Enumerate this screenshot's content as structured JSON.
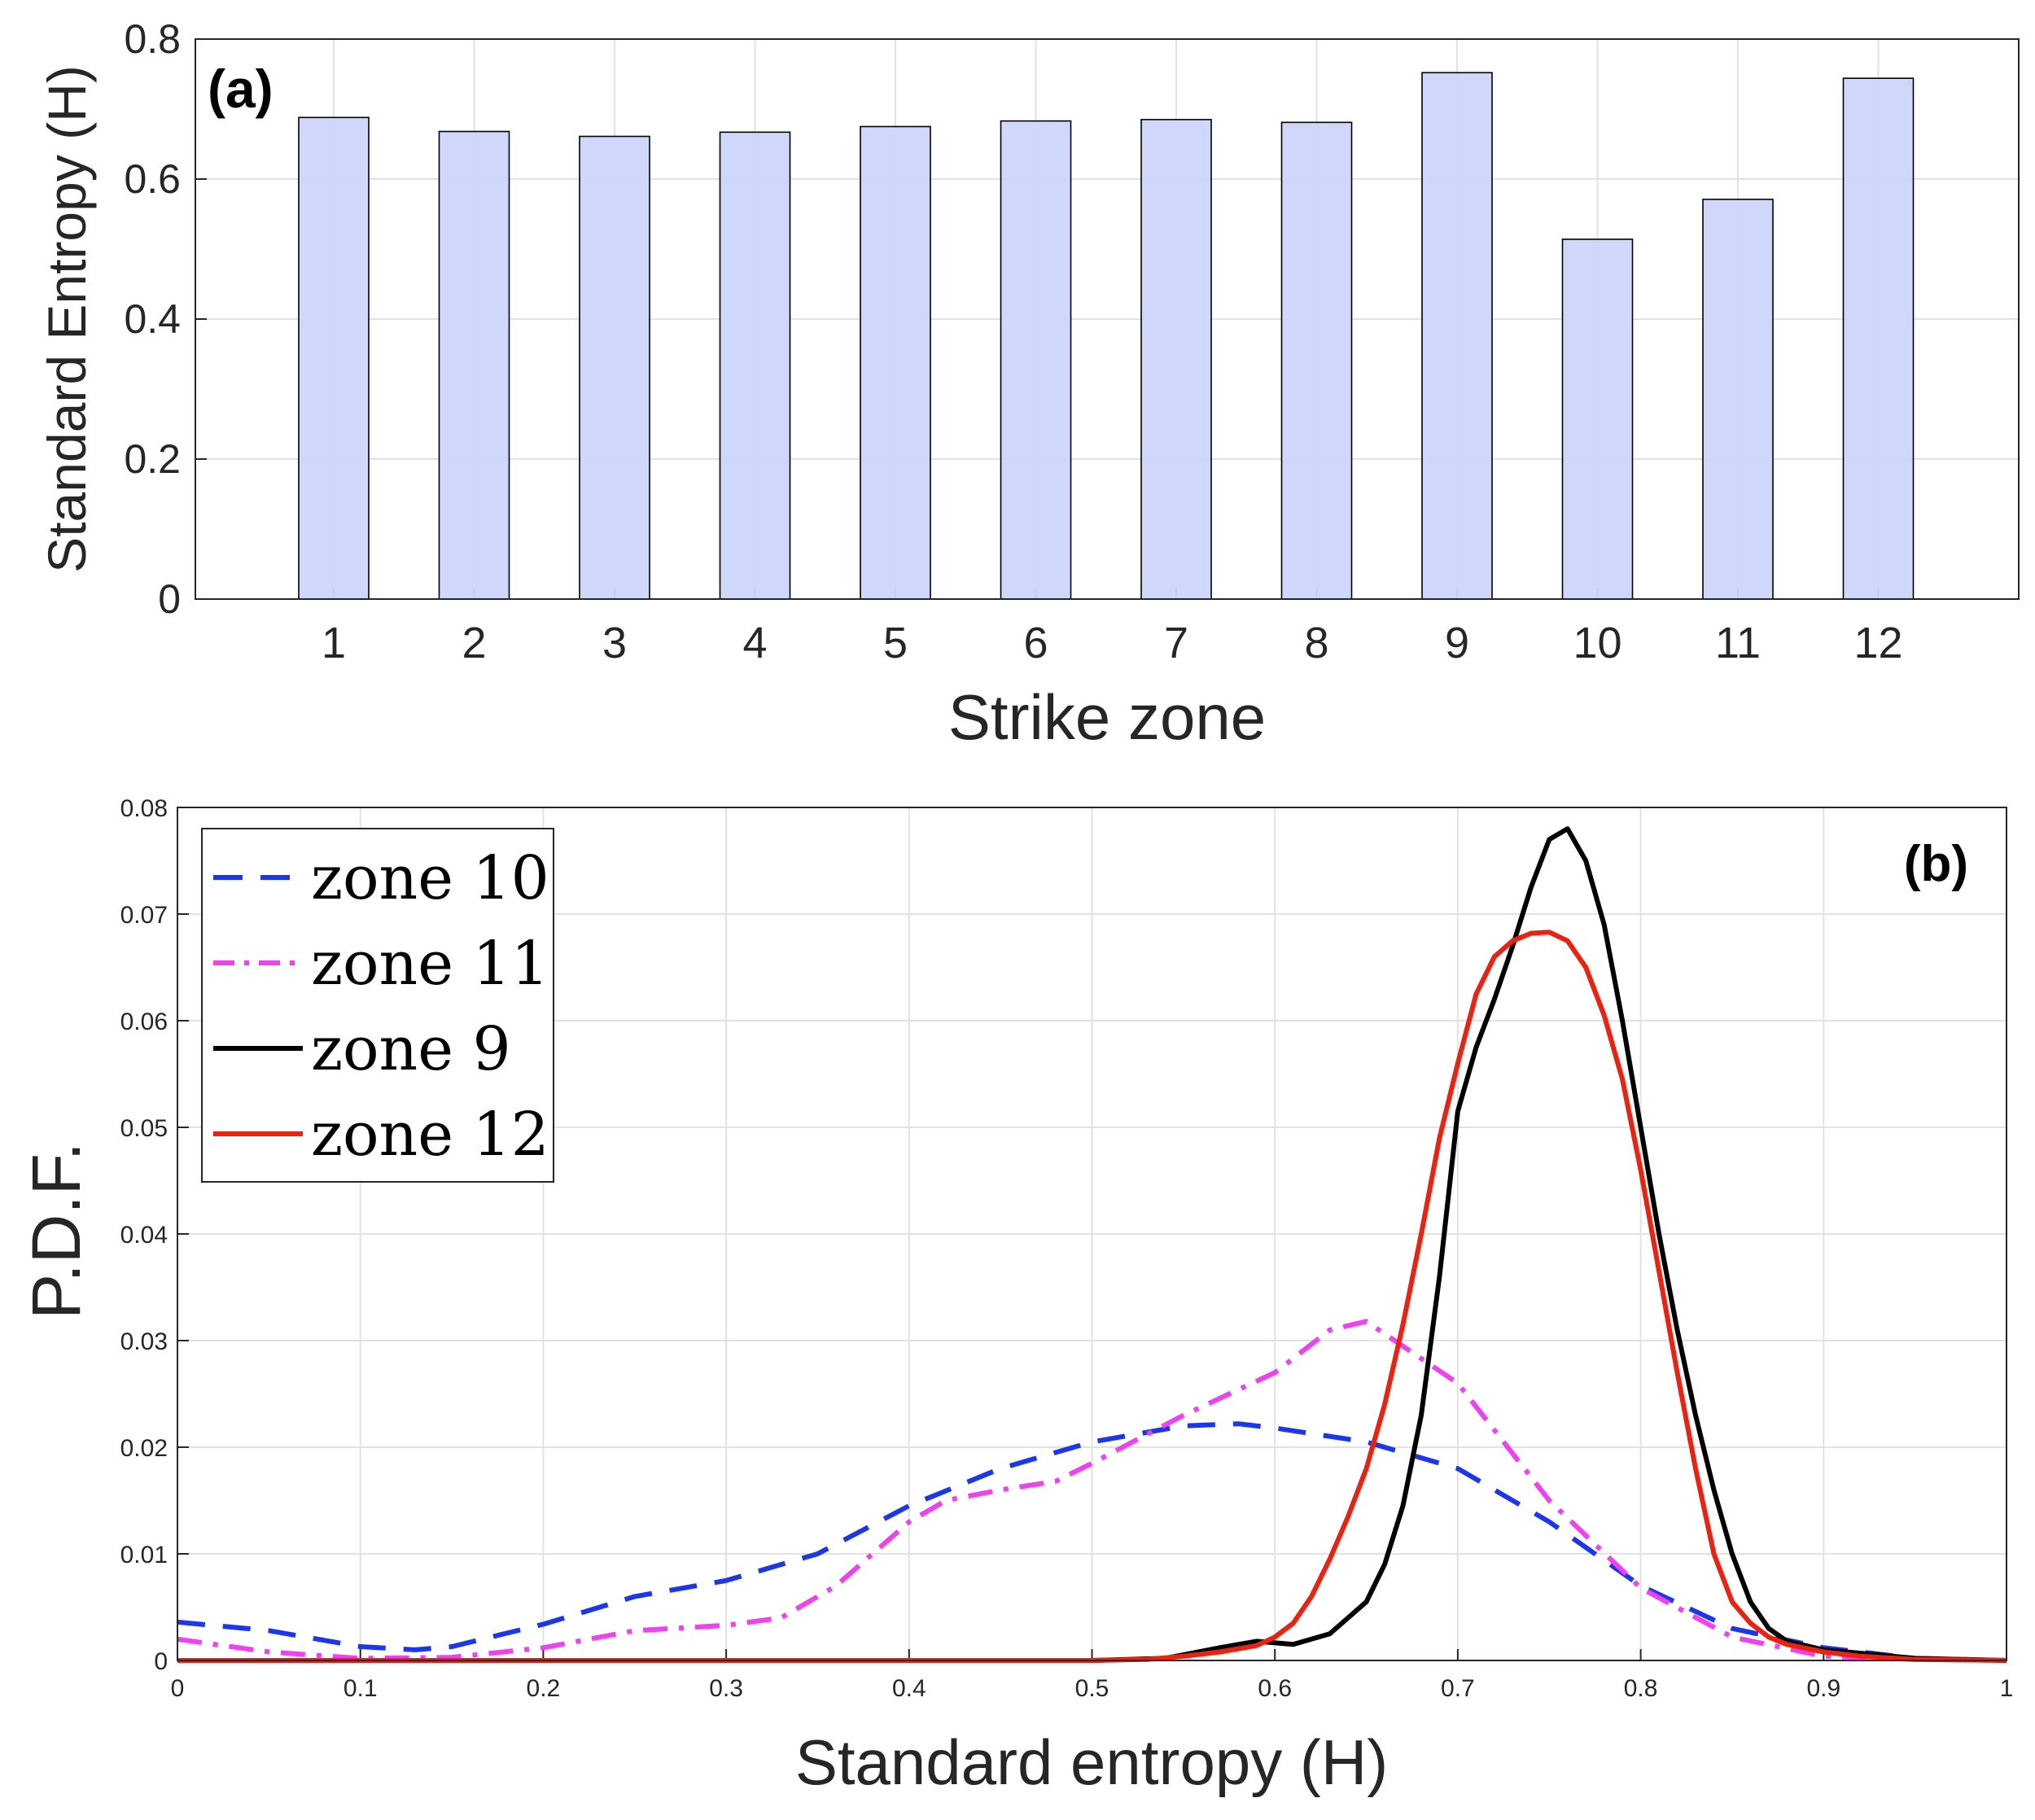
{
  "chart_data": [
    {
      "type": "bar",
      "panel_label": "(a)",
      "title": "",
      "xlabel": "Strike zone",
      "ylabel": "Standard Entropy (H)",
      "categories": [
        "1",
        "2",
        "3",
        "4",
        "5",
        "6",
        "7",
        "8",
        "9",
        "10",
        "11",
        "12"
      ],
      "values": [
        0.688,
        0.668,
        0.661,
        0.667,
        0.675,
        0.683,
        0.685,
        0.681,
        0.752,
        0.514,
        0.571,
        0.744
      ],
      "ylim": [
        0,
        0.8
      ],
      "yticks": [
        0,
        0.2,
        0.4,
        0.6,
        0.8
      ],
      "ytick_labels": [
        "0",
        "0.2",
        "0.4",
        "0.6",
        "0.8"
      ],
      "grid": true,
      "bar_color": "#ccd5fb",
      "bar_edge_color": "#000000"
    },
    {
      "type": "line",
      "panel_label": "(b)",
      "title": "",
      "xlabel": "Standard entropy (H)",
      "ylabel": "P.D.F.",
      "xlim": [
        0,
        1
      ],
      "ylim": [
        0,
        0.08
      ],
      "xticks": [
        0,
        0.1,
        0.2,
        0.3,
        0.4,
        0.5,
        0.6,
        0.7,
        0.8,
        0.9,
        1
      ],
      "xtick_labels": [
        "0",
        "0.1",
        "0.2",
        "0.3",
        "0.4",
        "0.5",
        "0.6",
        "0.7",
        "0.8",
        "0.9",
        "1"
      ],
      "yticks": [
        0,
        0.01,
        0.02,
        0.03,
        0.04,
        0.05,
        0.06,
        0.07,
        0.08
      ],
      "ytick_labels": [
        "0",
        "0.01",
        "0.02",
        "0.03",
        "0.04",
        "0.05",
        "0.06",
        "0.07",
        "0.08"
      ],
      "grid": true,
      "legend_position": "top-left",
      "series": [
        {
          "name": "zone 10",
          "legend_label": "zone 10",
          "color": "#1a36f5",
          "style": "dashed",
          "x": [
            0,
            0.05,
            0.1,
            0.13,
            0.15,
            0.2,
            0.25,
            0.3,
            0.35,
            0.4,
            0.45,
            0.5,
            0.55,
            0.58,
            0.6,
            0.65,
            0.7,
            0.75,
            0.8,
            0.85,
            0.9,
            0.95,
            1
          ],
          "y": [
            0.0036,
            0.0028,
            0.0013,
            0.001,
            0.0013,
            0.0034,
            0.006,
            0.0075,
            0.01,
            0.0145,
            0.018,
            0.0205,
            0.022,
            0.0222,
            0.0218,
            0.0205,
            0.018,
            0.013,
            0.007,
            0.003,
            0.0012,
            0.0002,
            0
          ]
        },
        {
          "name": "zone 11",
          "legend_label": "zone 11",
          "color": "#f23ef5",
          "style": "dashdot",
          "x": [
            0,
            0.05,
            0.1,
            0.15,
            0.2,
            0.25,
            0.3,
            0.33,
            0.36,
            0.4,
            0.42,
            0.45,
            0.48,
            0.5,
            0.55,
            0.6,
            0.63,
            0.65,
            0.7,
            0.75,
            0.8,
            0.85,
            0.9,
            0.95,
            1
          ],
          "y": [
            0.002,
            0.0008,
            0.0002,
            0.0003,
            0.0012,
            0.0028,
            0.0033,
            0.004,
            0.007,
            0.013,
            0.015,
            0.016,
            0.0168,
            0.0185,
            0.023,
            0.027,
            0.031,
            0.0318,
            0.026,
            0.015,
            0.0068,
            0.0022,
            0.0004,
            0.0001,
            0
          ]
        },
        {
          "name": "zone 9",
          "legend_label": "zone 9",
          "color": "#000000",
          "style": "solid",
          "x": [
            0,
            0.5,
            0.54,
            0.57,
            0.59,
            0.61,
            0.63,
            0.65,
            0.66,
            0.67,
            0.68,
            0.69,
            0.7,
            0.71,
            0.72,
            0.73,
            0.74,
            0.75,
            0.76,
            0.77,
            0.78,
            0.79,
            0.8,
            0.81,
            0.82,
            0.83,
            0.84,
            0.85,
            0.86,
            0.87,
            0.88,
            0.9,
            0.95,
            1
          ],
          "y": [
            0,
            0,
            0.0002,
            0.0012,
            0.0018,
            0.0015,
            0.0025,
            0.0055,
            0.009,
            0.0145,
            0.023,
            0.036,
            0.0515,
            0.0575,
            0.062,
            0.067,
            0.0725,
            0.077,
            0.078,
            0.075,
            0.069,
            0.06,
            0.05,
            0.04,
            0.031,
            0.023,
            0.016,
            0.01,
            0.0055,
            0.003,
            0.0018,
            0.001,
            0.0002,
            0
          ]
        },
        {
          "name": "zone 12",
          "legend_label": "zone 12",
          "color": "#f0200f",
          "style": "solid",
          "x": [
            0,
            0.5,
            0.53,
            0.55,
            0.57,
            0.59,
            0.6,
            0.61,
            0.62,
            0.63,
            0.64,
            0.65,
            0.66,
            0.67,
            0.68,
            0.69,
            0.7,
            0.71,
            0.72,
            0.73,
            0.74,
            0.75,
            0.76,
            0.77,
            0.78,
            0.79,
            0.8,
            0.81,
            0.82,
            0.83,
            0.84,
            0.85,
            0.86,
            0.87,
            0.88,
            0.9,
            0.92,
            0.95,
            1
          ],
          "y": [
            0,
            0,
            0.0001,
            0.0004,
            0.0008,
            0.0014,
            0.0022,
            0.0035,
            0.006,
            0.0095,
            0.0135,
            0.018,
            0.024,
            0.0315,
            0.04,
            0.049,
            0.056,
            0.0625,
            0.066,
            0.0675,
            0.0682,
            0.0683,
            0.0675,
            0.065,
            0.0605,
            0.0545,
            0.046,
            0.0365,
            0.027,
            0.018,
            0.01,
            0.0055,
            0.0035,
            0.0022,
            0.0015,
            0.0008,
            0.0004,
            0.0001,
            0
          ]
        }
      ]
    }
  ]
}
